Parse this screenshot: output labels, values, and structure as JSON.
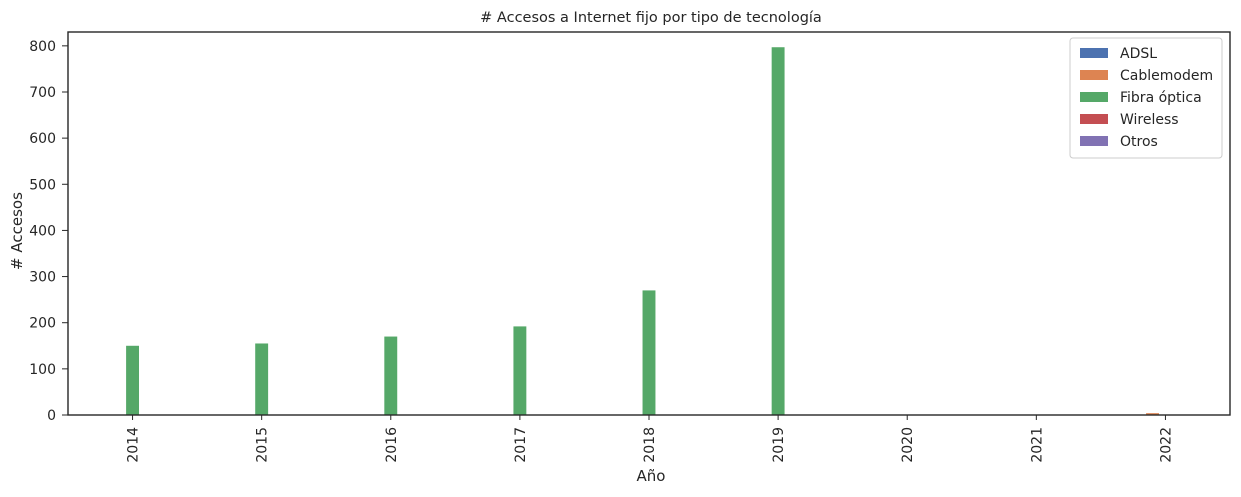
{
  "chart_data": {
    "type": "bar",
    "title": "# Accesos a Internet fijo por tipo de tecnología",
    "xlabel": "Año",
    "ylabel": "# Accesos",
    "categories": [
      "2014",
      "2015",
      "2016",
      "2017",
      "2018",
      "2019",
      "2020",
      "2021",
      "2022"
    ],
    "ylim": [
      0,
      830
    ],
    "yticks": [
      0,
      100,
      200,
      300,
      400,
      500,
      600,
      700,
      800
    ],
    "grid": false,
    "legend_position": "top-right",
    "series": [
      {
        "name": "ADSL",
        "color": "#4c72b0",
        "values": [
          0,
          0,
          0,
          0,
          0,
          0,
          0,
          0,
          0
        ]
      },
      {
        "name": "Cablemodem",
        "color": "#dd8452",
        "values": [
          0,
          0,
          0,
          0,
          0,
          0,
          0,
          0,
          4
        ]
      },
      {
        "name": "Fibra óptica",
        "color": "#55a868",
        "values": [
          150,
          155,
          170,
          192,
          270,
          797,
          0,
          0,
          0
        ]
      },
      {
        "name": "Wireless",
        "color": "#c44e52",
        "values": [
          0,
          0,
          0,
          0,
          0,
          0,
          0,
          0,
          0
        ]
      },
      {
        "name": "Otros",
        "color": "#8172b3",
        "values": [
          0,
          0,
          0,
          0,
          0,
          0,
          0,
          0,
          0
        ]
      }
    ]
  }
}
